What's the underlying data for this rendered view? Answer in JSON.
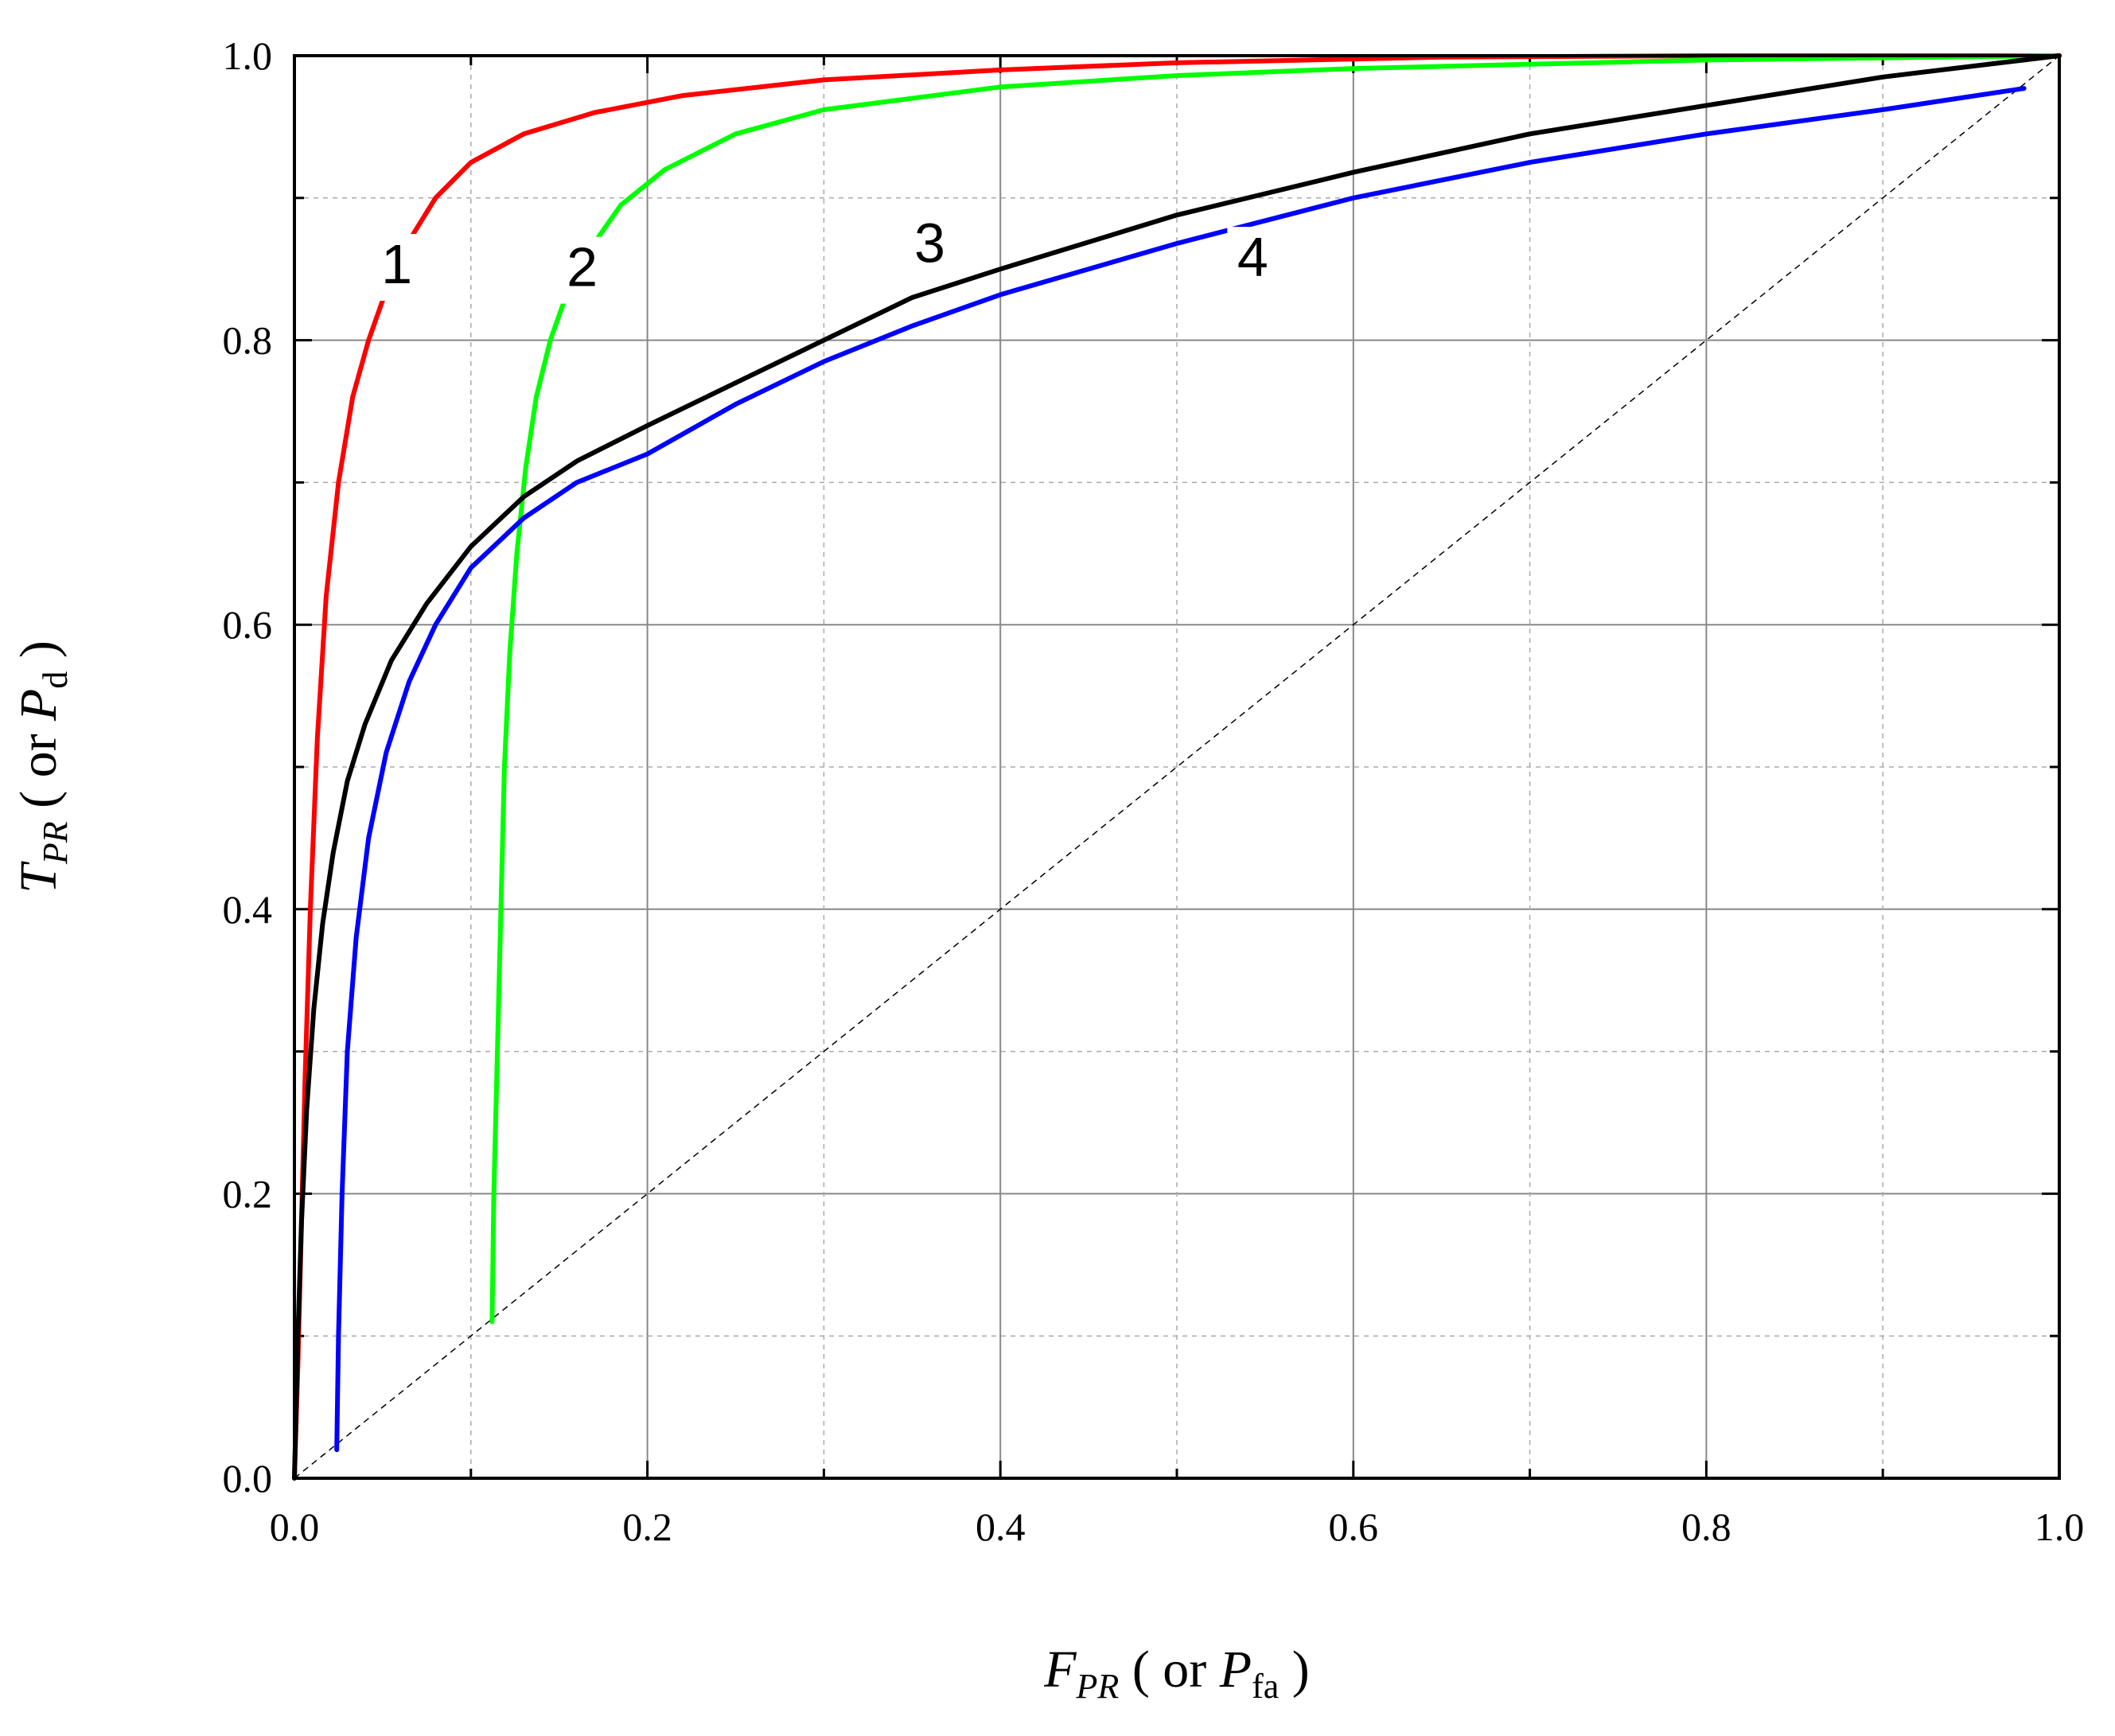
{
  "chart_data": {
    "type": "line",
    "xlabel": {
      "main": "F",
      "sub": "PR",
      "middle": " ( or ",
      "main2": "P",
      "sub2": "fa",
      "end": " )"
    },
    "ylabel": {
      "main": "T",
      "sub": "PR",
      "middle": " ( or ",
      "main2": "P",
      "sub2": "d",
      "end": " )"
    },
    "xlim": [
      0,
      1
    ],
    "ylim": [
      0,
      1
    ],
    "major_ticks": [
      0.0,
      0.2,
      0.4,
      0.6,
      0.8,
      1.0
    ],
    "tick_labels": [
      "0.0",
      "0.2",
      "0.4",
      "0.6",
      "0.8",
      "1.0"
    ],
    "minor_ticks": [
      0.1,
      0.3,
      0.5,
      0.7,
      0.9
    ],
    "grid": true,
    "reference_line": [
      [
        0,
        0
      ],
      [
        1,
        1
      ]
    ],
    "series": [
      {
        "name": "1",
        "color": "#ff0000",
        "label_pos": [
          0.058,
          0.84
        ],
        "points": [
          [
            0.0,
            0.0
          ],
          [
            0.002,
            0.08
          ],
          [
            0.004,
            0.18
          ],
          [
            0.006,
            0.28
          ],
          [
            0.009,
            0.4
          ],
          [
            0.013,
            0.52
          ],
          [
            0.018,
            0.62
          ],
          [
            0.025,
            0.7
          ],
          [
            0.033,
            0.76
          ],
          [
            0.042,
            0.8
          ],
          [
            0.052,
            0.835
          ],
          [
            0.065,
            0.87
          ],
          [
            0.08,
            0.9
          ],
          [
            0.1,
            0.925
          ],
          [
            0.13,
            0.945
          ],
          [
            0.17,
            0.96
          ],
          [
            0.22,
            0.972
          ],
          [
            0.3,
            0.983
          ],
          [
            0.4,
            0.99
          ],
          [
            0.5,
            0.995
          ],
          [
            0.65,
            0.999
          ],
          [
            0.8,
            1.0
          ],
          [
            1.0,
            1.0
          ]
        ]
      },
      {
        "name": "2",
        "color": "#00ff00",
        "label_pos": [
          0.163,
          0.838
        ],
        "points": [
          [
            0.112,
            0.11
          ],
          [
            0.113,
            0.2
          ],
          [
            0.115,
            0.3
          ],
          [
            0.117,
            0.4
          ],
          [
            0.119,
            0.5
          ],
          [
            0.122,
            0.58
          ],
          [
            0.126,
            0.65
          ],
          [
            0.131,
            0.71
          ],
          [
            0.137,
            0.76
          ],
          [
            0.145,
            0.8
          ],
          [
            0.155,
            0.835
          ],
          [
            0.168,
            0.865
          ],
          [
            0.185,
            0.895
          ],
          [
            0.21,
            0.92
          ],
          [
            0.25,
            0.945
          ],
          [
            0.3,
            0.962
          ],
          [
            0.4,
            0.978
          ],
          [
            0.5,
            0.986
          ],
          [
            0.6,
            0.991
          ],
          [
            0.8,
            0.997
          ],
          [
            1.0,
            1.0
          ]
        ]
      },
      {
        "name": "3",
        "color": "#000000",
        "label_pos": [
          0.36,
          0.855
        ],
        "points": [
          [
            0.0,
            0.0
          ],
          [
            0.002,
            0.1
          ],
          [
            0.004,
            0.18
          ],
          [
            0.007,
            0.26
          ],
          [
            0.011,
            0.33
          ],
          [
            0.016,
            0.39
          ],
          [
            0.022,
            0.44
          ],
          [
            0.03,
            0.49
          ],
          [
            0.04,
            0.53
          ],
          [
            0.055,
            0.575
          ],
          [
            0.075,
            0.615
          ],
          [
            0.1,
            0.655
          ],
          [
            0.13,
            0.69
          ],
          [
            0.16,
            0.715
          ],
          [
            0.2,
            0.74
          ],
          [
            0.25,
            0.77
          ],
          [
            0.3,
            0.8
          ],
          [
            0.35,
            0.83
          ],
          [
            0.4,
            0.85
          ],
          [
            0.5,
            0.888
          ],
          [
            0.6,
            0.918
          ],
          [
            0.7,
            0.945
          ],
          [
            0.8,
            0.965
          ],
          [
            0.9,
            0.985
          ],
          [
            1.0,
            1.0
          ]
        ]
      },
      {
        "name": "4",
        "color": "#0000ff",
        "label_pos": [
          0.543,
          0.845
        ],
        "points": [
          [
            0.024,
            0.02
          ],
          [
            0.025,
            0.1
          ],
          [
            0.027,
            0.2
          ],
          [
            0.03,
            0.3
          ],
          [
            0.035,
            0.38
          ],
          [
            0.042,
            0.45
          ],
          [
            0.052,
            0.51
          ],
          [
            0.065,
            0.56
          ],
          [
            0.08,
            0.6
          ],
          [
            0.1,
            0.64
          ],
          [
            0.13,
            0.675
          ],
          [
            0.16,
            0.7
          ],
          [
            0.2,
            0.72
          ],
          [
            0.25,
            0.755
          ],
          [
            0.3,
            0.785
          ],
          [
            0.35,
            0.81
          ],
          [
            0.4,
            0.832
          ],
          [
            0.5,
            0.868
          ],
          [
            0.6,
            0.9
          ],
          [
            0.7,
            0.925
          ],
          [
            0.8,
            0.945
          ],
          [
            0.9,
            0.962
          ],
          [
            0.98,
            0.977
          ]
        ]
      }
    ]
  }
}
